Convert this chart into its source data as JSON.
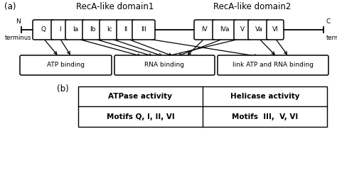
{
  "title_a": "(a)",
  "title_b": "(b)",
  "domain1_label": "RecA-like domain1",
  "domain2_label": "RecA-like domain2",
  "motifs_domain1": [
    "Q",
    "I",
    "Ia",
    "Ib",
    "Ic",
    "II",
    "III"
  ],
  "motifs_domain2": [
    "IV",
    "IVa",
    "V",
    "Va",
    "VI"
  ],
  "box1_label": "ATP binding",
  "box2_label": "RNA binding",
  "box3_label": "link ATP and RNA binding",
  "table_headers": [
    "ATPase activity",
    "Helicase activity"
  ],
  "table_row": [
    "Motifs Q, I, II, VI",
    "Motifs  III,  V, VI"
  ],
  "bg_color": "#ffffff",
  "text_color": "#000000",
  "fs_small": 6.5,
  "fs_mid": 7.5,
  "fs_domain": 8.5
}
